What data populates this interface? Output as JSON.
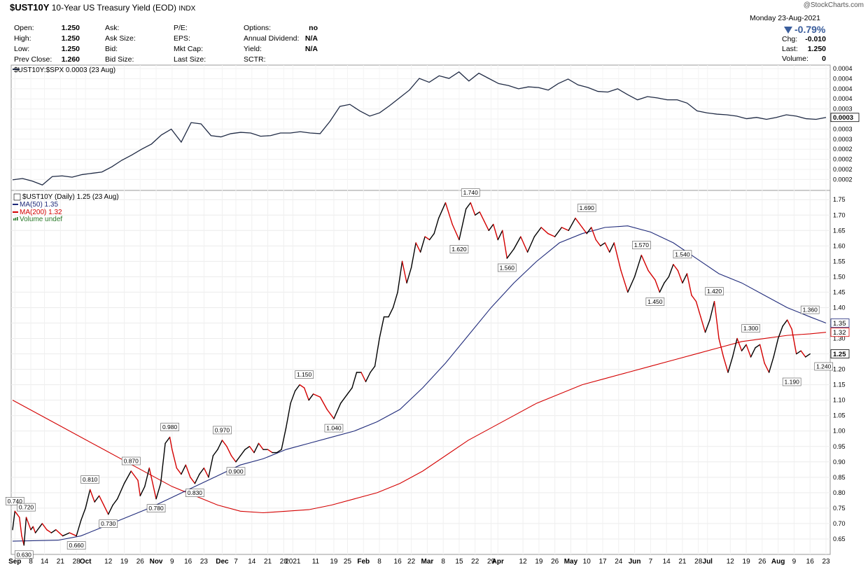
{
  "header": {
    "symbol": "$UST10Y",
    "name": "10-Year US Treasury Yield (EOD)",
    "exchange": "INDX",
    "watermark": "@StockCharts.com",
    "date_line": "Monday  23-Aug-2021",
    "change_pct": "-0.79%",
    "chg_label": "Chg:",
    "chg_value": "-0.010",
    "last_label": "Last:",
    "last_value": "1.250",
    "volume_label": "Volume:",
    "volume_value": "0"
  },
  "quote": {
    "open_label": "Open:",
    "open": "1.250",
    "high_label": "High:",
    "high": "1.250",
    "low_label": "Low:",
    "low": "1.250",
    "prev_label": "Prev Close:",
    "prev": "1.260",
    "ask_label": "Ask:",
    "ask_size_label": "Ask Size:",
    "bid_label": "Bid:",
    "bid_size_label": "Bid Size:",
    "pe_label": "P/E:",
    "eps_label": "EPS:",
    "mktcap_label": "Mkt Cap:",
    "lastsize_label": "Last Size:",
    "options_label": "Options:",
    "options": "no",
    "div_label": "Annual Dividend:",
    "div": "N/A",
    "yield_label": "Yield:",
    "yield": "N/A",
    "sctr_label": "SCTR:"
  },
  "colors": {
    "price": "#000000",
    "down": "#d40000",
    "ma50": "#1f2a7a",
    "ma200": "#d40000",
    "volume": "#2a7a2a",
    "ratio": "#1f2a44"
  },
  "chart_data": [
    {
      "type": "line",
      "legend": "$UST10Y:$SPX 0.0003 (23 Aug)",
      "last_label": "0.0003",
      "ylim": [
        0.0002,
        0.0004
      ],
      "y_ticks": [
        "0.0004",
        "0.0004",
        "0.0004",
        "0.0004",
        "0.0003",
        "0.0003",
        "0.0003",
        "0.0003",
        "0.0002",
        "0.0002",
        "0.0002",
        "0.0002"
      ],
      "y_tick_values": [
        0.000395,
        0.000385,
        0.000375,
        0.000365,
        0.000355,
        0.000345,
        0.000335,
        0.000325,
        0.000255,
        0.000245,
        0.000235,
        0.000225
      ],
      "y": [
        0.000232,
        0.000234,
        0.00023,
        0.000224,
        0.000237,
        0.000238,
        0.000236,
        0.00024,
        0.000242,
        0.000244,
        0.000252,
        0.000262,
        0.00027,
        0.000279,
        0.000287,
        0.000301,
        0.00031,
        0.00029,
        0.00032,
        0.000318,
        0.0003,
        0.000298,
        0.000303,
        0.000305,
        0.000304,
        0.000299,
        0.0003,
        0.000304,
        0.000304,
        0.000306,
        0.000304,
        0.000303,
        0.000322,
        0.000345,
        0.000348,
        0.000338,
        0.00033,
        0.000335,
        0.000346,
        0.000358,
        0.00037,
        0.000388,
        0.000382,
        0.000392,
        0.000388,
        0.000398,
        0.000384,
        0.000396,
        0.000388,
        0.00038,
        0.000377,
        0.000372,
        0.000375,
        0.000374,
        0.00037,
        0.00038,
        0.000387,
        0.000378,
        0.000374,
        0.000368,
        0.000367,
        0.000372,
        0.000363,
        0.000355,
        0.00036,
        0.000358,
        0.000355,
        0.000355,
        0.00035,
        0.000338,
        0.000335,
        0.000333,
        0.000332,
        0.00033,
        0.000326,
        0.000328,
        0.000325,
        0.000328,
        0.000332,
        0.00033,
        0.000326,
        0.000325,
        0.000328
      ]
    },
    {
      "type": "line",
      "legend_items": [
        "$UST10Y (Daily) 1.25 (23 Aug)",
        "MA(50) 1.35",
        "MA(200) 1.32",
        "Volume undef"
      ],
      "ylim": [
        0.6,
        1.78
      ],
      "y_ticks": [
        0.65,
        0.7,
        0.75,
        0.8,
        0.85,
        0.9,
        0.95,
        1.0,
        1.05,
        1.1,
        1.15,
        1.2,
        1.25,
        1.3,
        1.35,
        1.4,
        1.45,
        1.5,
        1.55,
        1.6,
        1.65,
        1.7,
        1.75
      ],
      "last_labels": {
        "ma50": "1.35",
        "ma200": "1.32",
        "price": "1.25"
      },
      "x_labels": [
        "Sep",
        "8",
        "14",
        "21",
        "28",
        "Oct",
        "12",
        "19",
        "26",
        "Nov",
        "9",
        "16",
        "23",
        "Dec",
        "7",
        "14",
        "21",
        "28",
        "2021",
        "11",
        "19",
        "25",
        "Feb",
        "8",
        "16",
        "22",
        "Mar",
        "8",
        "15",
        "22",
        "29",
        "Apr",
        "12",
        "19",
        "26",
        "May",
        "10",
        "17",
        "24",
        "Jun",
        "7",
        "14",
        "21",
        "28",
        "Jul",
        "12",
        "19",
        "26",
        "Aug",
        "9",
        "16",
        "23"
      ],
      "x_label_days": [
        1,
        8,
        14,
        21,
        28,
        32,
        42,
        49,
        56,
        63,
        70,
        77,
        84,
        92,
        98,
        105,
        112,
        119,
        123,
        133,
        141,
        147,
        154,
        161,
        169,
        175,
        182,
        189,
        196,
        203,
        210,
        213,
        224,
        231,
        238,
        245,
        252,
        259,
        266,
        273,
        280,
        287,
        294,
        301,
        305,
        315,
        322,
        329,
        336,
        343,
        350,
        357
      ],
      "days": [
        0,
        1,
        2,
        3,
        4,
        5,
        6,
        7,
        8,
        9,
        10,
        11,
        12,
        13,
        15,
        17,
        19,
        22,
        25,
        28,
        30,
        32,
        34,
        36,
        38,
        40,
        42,
        44,
        46,
        49,
        52,
        55,
        56,
        58,
        60,
        63,
        65,
        67,
        69,
        70,
        72,
        74,
        76,
        78,
        80,
        82,
        84,
        86,
        88,
        90,
        92,
        94,
        96,
        98,
        100,
        102,
        104,
        106,
        108,
        110,
        112,
        114,
        116,
        118,
        120,
        122,
        124,
        126,
        128,
        130,
        132,
        135,
        138,
        141,
        144,
        147,
        149,
        151,
        153,
        155,
        157,
        159,
        161,
        163,
        165,
        167,
        169,
        171,
        173,
        175,
        177,
        179,
        181,
        183,
        185,
        187,
        190,
        193,
        196,
        199,
        201,
        203,
        205,
        207,
        209,
        211,
        213,
        215,
        217,
        220,
        223,
        226,
        229,
        232,
        235,
        238,
        241,
        244,
        247,
        250,
        252,
        254,
        256,
        258,
        260,
        262,
        264,
        267,
        270,
        273,
        276,
        279,
        282,
        284,
        286,
        288,
        290,
        292,
        294,
        296,
        298,
        300,
        302,
        304,
        306,
        308,
        310,
        312,
        314,
        316,
        318,
        320,
        322,
        324,
        326,
        328,
        330,
        332,
        334,
        336,
        338,
        340,
        342,
        344,
        346,
        348,
        350,
        352,
        354,
        356,
        357
      ],
      "price": [
        0.68,
        0.74,
        0.73,
        0.72,
        0.66,
        0.63,
        0.72,
        0.7,
        0.68,
        0.69,
        0.67,
        0.68,
        0.69,
        0.7,
        0.68,
        0.67,
        0.68,
        0.66,
        0.67,
        0.66,
        0.71,
        0.75,
        0.81,
        0.77,
        0.79,
        0.76,
        0.73,
        0.76,
        0.78,
        0.83,
        0.87,
        0.84,
        0.79,
        0.82,
        0.88,
        0.78,
        0.83,
        0.96,
        0.98,
        0.94,
        0.88,
        0.86,
        0.89,
        0.85,
        0.83,
        0.86,
        0.88,
        0.85,
        0.92,
        0.94,
        0.97,
        0.95,
        0.92,
        0.9,
        0.92,
        0.94,
        0.95,
        0.93,
        0.96,
        0.94,
        0.94,
        0.93,
        0.93,
        0.94,
        1.01,
        1.09,
        1.13,
        1.15,
        1.14,
        1.1,
        1.12,
        1.11,
        1.07,
        1.04,
        1.09,
        1.12,
        1.14,
        1.19,
        1.19,
        1.16,
        1.19,
        1.21,
        1.3,
        1.37,
        1.37,
        1.4,
        1.45,
        1.55,
        1.48,
        1.53,
        1.61,
        1.58,
        1.63,
        1.62,
        1.64,
        1.69,
        1.74,
        1.67,
        1.62,
        1.72,
        1.74,
        1.7,
        1.71,
        1.68,
        1.65,
        1.67,
        1.62,
        1.65,
        1.56,
        1.59,
        1.63,
        1.58,
        1.63,
        1.66,
        1.64,
        1.63,
        1.66,
        1.65,
        1.69,
        1.66,
        1.64,
        1.66,
        1.62,
        1.6,
        1.61,
        1.58,
        1.61,
        1.52,
        1.45,
        1.5,
        1.57,
        1.52,
        1.49,
        1.45,
        1.48,
        1.5,
        1.54,
        1.52,
        1.48,
        1.51,
        1.44,
        1.42,
        1.37,
        1.32,
        1.36,
        1.42,
        1.3,
        1.24,
        1.19,
        1.24,
        1.3,
        1.26,
        1.28,
        1.24,
        1.27,
        1.28,
        1.22,
        1.19,
        1.24,
        1.3,
        1.34,
        1.36,
        1.33,
        1.25,
        1.26,
        1.24,
        1.25
      ],
      "ma50": [
        [
          0,
          0.643
        ],
        [
          20,
          0.646
        ],
        [
          30,
          0.66
        ],
        [
          40,
          0.69
        ],
        [
          50,
          0.72
        ],
        [
          60,
          0.75
        ],
        [
          70,
          0.785
        ],
        [
          80,
          0.82
        ],
        [
          90,
          0.855
        ],
        [
          100,
          0.89
        ],
        [
          110,
          0.91
        ],
        [
          120,
          0.94
        ],
        [
          130,
          0.96
        ],
        [
          140,
          0.98
        ],
        [
          150,
          1.0
        ],
        [
          160,
          1.03
        ],
        [
          170,
          1.07
        ],
        [
          180,
          1.14
        ],
        [
          190,
          1.22
        ],
        [
          200,
          1.31
        ],
        [
          210,
          1.4
        ],
        [
          220,
          1.48
        ],
        [
          230,
          1.55
        ],
        [
          240,
          1.61
        ],
        [
          250,
          1.64
        ],
        [
          260,
          1.66
        ],
        [
          270,
          1.665
        ],
        [
          280,
          1.645
        ],
        [
          290,
          1.61
        ],
        [
          300,
          1.56
        ],
        [
          310,
          1.51
        ],
        [
          320,
          1.48
        ],
        [
          330,
          1.44
        ],
        [
          340,
          1.4
        ],
        [
          350,
          1.37
        ],
        [
          357,
          1.35
        ]
      ],
      "ma200": [
        [
          0,
          1.1
        ],
        [
          20,
          1.02
        ],
        [
          40,
          0.94
        ],
        [
          50,
          0.9
        ],
        [
          60,
          0.86
        ],
        [
          70,
          0.82
        ],
        [
          80,
          0.79
        ],
        [
          90,
          0.76
        ],
        [
          100,
          0.74
        ],
        [
          110,
          0.735
        ],
        [
          120,
          0.74
        ],
        [
          130,
          0.745
        ],
        [
          140,
          0.76
        ],
        [
          150,
          0.78
        ],
        [
          160,
          0.8
        ],
        [
          170,
          0.83
        ],
        [
          180,
          0.87
        ],
        [
          190,
          0.92
        ],
        [
          200,
          0.97
        ],
        [
          210,
          1.01
        ],
        [
          220,
          1.05
        ],
        [
          230,
          1.09
        ],
        [
          240,
          1.12
        ],
        [
          250,
          1.15
        ],
        [
          260,
          1.17
        ],
        [
          270,
          1.19
        ],
        [
          280,
          1.21
        ],
        [
          290,
          1.23
        ],
        [
          300,
          1.25
        ],
        [
          310,
          1.27
        ],
        [
          320,
          1.29
        ],
        [
          330,
          1.3
        ],
        [
          340,
          1.31
        ],
        [
          350,
          1.315
        ],
        [
          357,
          1.32
        ]
      ],
      "annotations": [
        {
          "day": 1,
          "value": 0.74,
          "label": "0.740",
          "pos": "above"
        },
        {
          "day": 5,
          "value": 0.63,
          "label": "0.630",
          "pos": "below"
        },
        {
          "day": 6,
          "value": 0.72,
          "label": "0.720",
          "pos": "above"
        },
        {
          "day": 28,
          "value": 0.66,
          "label": "0.660",
          "pos": "below"
        },
        {
          "day": 34,
          "value": 0.81,
          "label": "0.810",
          "pos": "above"
        },
        {
          "day": 42,
          "value": 0.73,
          "label": "0.730",
          "pos": "below"
        },
        {
          "day": 52,
          "value": 0.87,
          "label": "0.870",
          "pos": "above"
        },
        {
          "day": 63,
          "value": 0.78,
          "label": "0.780",
          "pos": "below"
        },
        {
          "day": 69,
          "value": 0.98,
          "label": "0.980",
          "pos": "above"
        },
        {
          "day": 80,
          "value": 0.83,
          "label": "0.830",
          "pos": "below"
        },
        {
          "day": 92,
          "value": 0.97,
          "label": "0.970",
          "pos": "above"
        },
        {
          "day": 98,
          "value": 0.9,
          "label": "0.900",
          "pos": "below"
        },
        {
          "day": 128,
          "value": 1.15,
          "label": "1.150",
          "pos": "above"
        },
        {
          "day": 141,
          "value": 1.04,
          "label": "1.040",
          "pos": "below"
        },
        {
          "day": 196,
          "value": 1.62,
          "label": "1.620",
          "pos": "below"
        },
        {
          "day": 201,
          "value": 1.74,
          "label": "1.740",
          "pos": "above"
        },
        {
          "day": 217,
          "value": 1.56,
          "label": "1.560",
          "pos": "below"
        },
        {
          "day": 252,
          "value": 1.69,
          "label": "1.690",
          "pos": "above"
        },
        {
          "day": 276,
          "value": 1.57,
          "label": "1.570",
          "pos": "above"
        },
        {
          "day": 282,
          "value": 1.45,
          "label": "1.450",
          "pos": "below"
        },
        {
          "day": 294,
          "value": 1.54,
          "label": "1.540",
          "pos": "above"
        },
        {
          "day": 308,
          "value": 1.42,
          "label": "1.420",
          "pos": "above"
        },
        {
          "day": 324,
          "value": 1.3,
          "label": "1.300",
          "pos": "above"
        },
        {
          "day": 342,
          "value": 1.19,
          "label": "1.190",
          "pos": "below"
        },
        {
          "day": 350,
          "value": 1.36,
          "label": "1.360",
          "pos": "above"
        },
        {
          "day": 356,
          "value": 1.24,
          "label": "1.240",
          "pos": "below"
        }
      ]
    }
  ]
}
